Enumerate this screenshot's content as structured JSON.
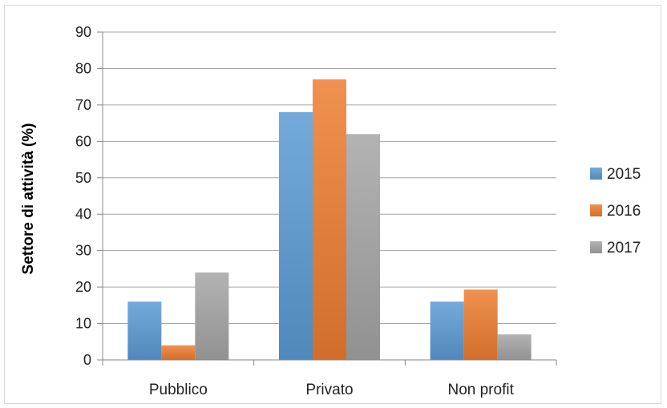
{
  "chart_data": {
    "type": "bar",
    "title": "",
    "xlabel": "",
    "ylabel": "Settore di attività (%)",
    "categories": [
      "Pubblico",
      "Privato",
      "Non profit"
    ],
    "series": [
      {
        "name": "2015",
        "values": [
          16,
          68,
          16
        ],
        "color": "#5b9bd5"
      },
      {
        "name": "2016",
        "values": [
          4,
          77,
          19.3
        ],
        "color": "#ed7d31"
      },
      {
        "name": "2017",
        "values": [
          24,
          62,
          7
        ],
        "color": "#a5a5a5"
      }
    ],
    "ylim": [
      0,
      90
    ],
    "yticks": [
      "0",
      "10",
      "20",
      "30",
      "40",
      "50",
      "60",
      "70",
      "80",
      "90"
    ],
    "grid": true,
    "legend_position": "right"
  }
}
